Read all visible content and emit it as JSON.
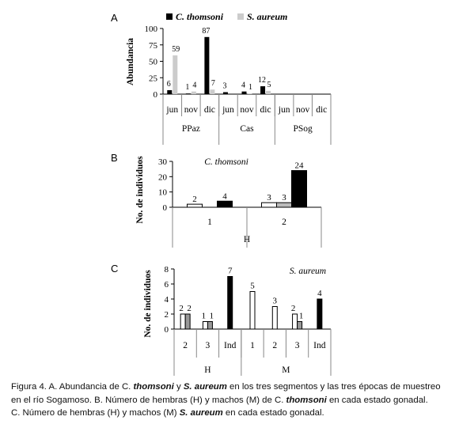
{
  "charts": [
    {
      "panel_label": "A",
      "legend": [
        {
          "name": "C. thomsoni",
          "color": "#000000"
        },
        {
          "name": "S. aureum",
          "color": "#cccccc"
        }
      ],
      "ylabel": "Abundancia",
      "yticks": [
        "0",
        "25",
        "50",
        "75",
        "100"
      ],
      "groups": [
        "PPaz",
        "Cas",
        "PSog"
      ]
    },
    {
      "panel_label": "B",
      "inner_title": "C. thomsoni",
      "ylabel": "No. de individuos",
      "yticks": [
        "0",
        "10",
        "20",
        "30"
      ],
      "groups": [
        "H"
      ]
    },
    {
      "panel_label": "C",
      "inner_title": "S. aureum",
      "ylabel": "No. de individuos",
      "yticks": [
        "0",
        "2",
        "4",
        "6",
        "8"
      ],
      "groups": [
        "H",
        "M"
      ]
    }
  ],
  "chart_data": [
    {
      "type": "bar",
      "ylim": [
        0,
        100
      ],
      "categories": [
        "jun",
        "nov",
        "dic",
        "jun",
        "nov",
        "dic",
        "jun",
        "nov",
        "dic"
      ],
      "category_groups": [
        "PPaz",
        "PPaz",
        "PPaz",
        "Cas",
        "Cas",
        "Cas",
        "PSog",
        "PSog",
        "PSog"
      ],
      "series": [
        {
          "name": "C. thomsoni",
          "values": [
            6,
            1,
            87,
            3,
            4,
            12,
            0,
            0,
            0
          ],
          "labels": [
            "6",
            "1",
            "87",
            "3",
            "4",
            "12",
            "",
            "",
            ""
          ]
        },
        {
          "name": "S. aureum",
          "values": [
            59,
            4,
            7,
            0,
            1,
            5,
            0,
            0,
            0
          ],
          "labels": [
            "59",
            "4",
            "7",
            "",
            "1",
            "5",
            "",
            "",
            ""
          ]
        }
      ]
    },
    {
      "type": "bar",
      "ylim": [
        0,
        30
      ],
      "categories": [
        "1",
        "2"
      ],
      "category_groups": [
        "H",
        "H"
      ],
      "series": [
        {
          "values": [
            2,
            3
          ],
          "labels": [
            "2",
            "3"
          ],
          "color": "#ffffff"
        },
        {
          "values": [
            0,
            3
          ],
          "labels": [
            "",
            "3"
          ],
          "color": "#bbbbbb"
        },
        {
          "values": [
            4,
            24
          ],
          "labels": [
            "4",
            "24"
          ],
          "color": "#000000"
        }
      ]
    },
    {
      "type": "bar",
      "ylim": [
        0,
        8
      ],
      "categories": [
        "2",
        "3",
        "Ind",
        "1",
        "2",
        "3",
        "Ind"
      ],
      "category_groups": [
        "H",
        "H",
        "H",
        "M",
        "M",
        "M",
        "M"
      ],
      "bars": [
        {
          "category": "2",
          "value": 2,
          "label": "2",
          "fill": "#ffffff"
        },
        {
          "category": "2",
          "value": 2,
          "label": "2",
          "fill": "#999999"
        },
        {
          "category": "3",
          "value": 1,
          "label": "1",
          "fill": "#ffffff"
        },
        {
          "category": "3",
          "value": 1,
          "label": "1",
          "fill": "#999999"
        },
        {
          "category": "Ind",
          "value": 7,
          "label": "7",
          "fill": "#000000"
        },
        {
          "category": "1",
          "value": 5,
          "label": "5",
          "fill": "#ffffff"
        },
        {
          "category": "2",
          "value": 3,
          "label": "3",
          "fill": "#ffffff"
        },
        {
          "category": "3",
          "value": 2,
          "label": "2",
          "fill": "#ffffff"
        },
        {
          "category": "3",
          "value": 1,
          "label": "1",
          "fill": "#999999"
        },
        {
          "category": "Ind",
          "value": 4,
          "label": "4",
          "fill": "#000000"
        }
      ]
    }
  ],
  "caption": {
    "lines": [
      [
        {
          "t": "Figura 4. A. Abundancia de C. "
        },
        {
          "t": "thomsoni",
          "i": true
        },
        {
          "t": " y "
        },
        {
          "t": "S. aureum",
          "i": true
        },
        {
          "t": " en los tres segmentos y las tres épocas de muestreo"
        }
      ],
      [
        {
          "t": "en el río Sogamoso. B. Número de hembras (H) y machos (M) de C. "
        },
        {
          "t": "thomsoni",
          "i": true
        },
        {
          "t": " en cada estado gonadal."
        }
      ],
      [
        {
          "t": "C. Número de hembras (H) y machos (M) "
        },
        {
          "t": "S. aureum",
          "i": true
        },
        {
          "t": " en cada estado gonadal."
        }
      ]
    ]
  }
}
